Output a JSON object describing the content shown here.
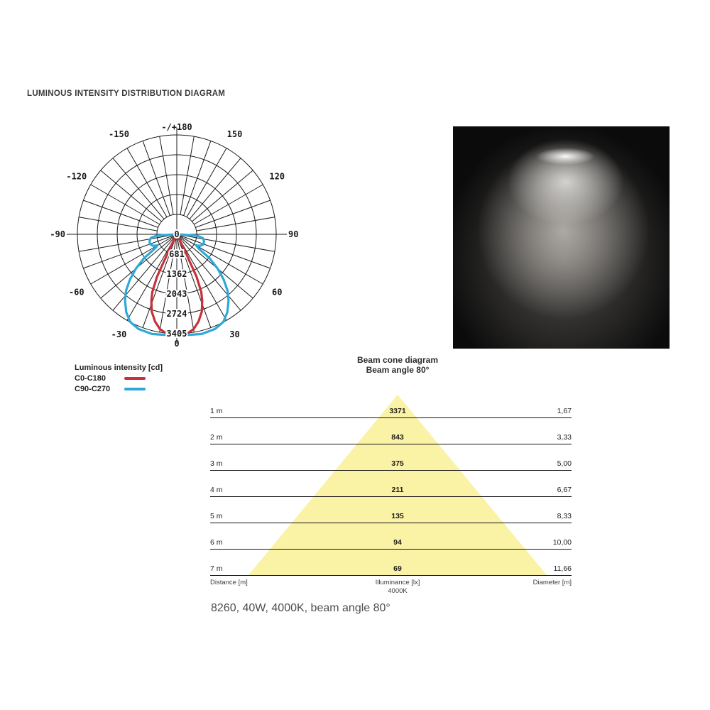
{
  "title": "LUMINOUS INTENSITY DISTRIBUTION DIAGRAM",
  "legend": {
    "title": "Luminous intensity [cd]",
    "entries": [
      {
        "label": "C0-C180",
        "color": "#c8303a"
      },
      {
        "label": "C90-C270",
        "color": "#2ea9d8"
      }
    ]
  },
  "photo": {
    "name": "light-beam-photo",
    "background": "#0b0b0b",
    "beam_color": "#e8e6e2"
  },
  "beam_cone": {
    "title": "Beam cone diagram",
    "subtitle": "Beam angle 80°",
    "cone_color": "#faf2a4",
    "rows": [
      {
        "distance": "1 m",
        "illuminance": "3371",
        "diameter": "1,67"
      },
      {
        "distance": "2 m",
        "illuminance": "843",
        "diameter": "3,33"
      },
      {
        "distance": "3 m",
        "illuminance": "375",
        "diameter": "5,00"
      },
      {
        "distance": "4 m",
        "illuminance": "211",
        "diameter": "6,67"
      },
      {
        "distance": "5 m",
        "illuminance": "135",
        "diameter": "8,33"
      },
      {
        "distance": "6 m",
        "illuminance": "94",
        "diameter": "10,00"
      },
      {
        "distance": "7 m",
        "illuminance": "69",
        "diameter": "11,66"
      }
    ],
    "footer": {
      "distance": "Distance [m]",
      "illuminance": "Illuminance [lx]",
      "cct": "4000K",
      "diameter": "Diameter [m]"
    }
  },
  "caption": "8260, 40W, 4000K, beam angle 80°",
  "chart_data": [
    {
      "type": "polar",
      "title": "Luminous intensity distribution",
      "units": "cd",
      "radial_ticks": [
        0,
        681,
        1362,
        2043,
        2724,
        3405
      ],
      "radial_max": 3405,
      "angle_grid_step_deg": 10,
      "angle_labels": [
        {
          "angle": 180,
          "text": "-/+180"
        },
        {
          "angle": -150,
          "text": "-150"
        },
        {
          "angle": 150,
          "text": "150"
        },
        {
          "angle": -120,
          "text": "-120"
        },
        {
          "angle": 120,
          "text": "120"
        },
        {
          "angle": -90,
          "text": "-90"
        },
        {
          "angle": 90,
          "text": "90"
        },
        {
          "angle": -60,
          "text": "-60"
        },
        {
          "angle": 60,
          "text": "60"
        },
        {
          "angle": -30,
          "text": "-30"
        },
        {
          "angle": 30,
          "text": "30"
        },
        {
          "angle": 0,
          "text": "0"
        }
      ],
      "series": [
        {
          "name": "C0-C180",
          "color": "#c8303a",
          "points_deg_cd": [
            [
              -30,
              0
            ],
            [
              -27,
              80
            ],
            [
              -26,
              650
            ],
            [
              -25,
              1600
            ],
            [
              -23,
              2150
            ],
            [
              -21,
              2430
            ],
            [
              -18,
              2780
            ],
            [
              -14,
              3080
            ],
            [
              -10,
              3300
            ],
            [
              -6,
              3420
            ],
            [
              0,
              3480
            ],
            [
              6,
              3420
            ],
            [
              10,
              3300
            ],
            [
              14,
              3080
            ],
            [
              18,
              2780
            ],
            [
              21,
              2430
            ],
            [
              23,
              2150
            ],
            [
              25,
              1600
            ],
            [
              26,
              650
            ],
            [
              27,
              80
            ],
            [
              30,
              0
            ]
          ]
        },
        {
          "name": "C90-C270",
          "color": "#2ea9d8",
          "points_deg_cd": [
            [
              -90,
              40
            ],
            [
              -86,
              700
            ],
            [
              -82,
              900
            ],
            [
              -76,
              960
            ],
            [
              -70,
              980
            ],
            [
              -64,
              900
            ],
            [
              -60,
              760
            ],
            [
              -57,
              900
            ],
            [
              -54,
              1380
            ],
            [
              -50,
              1830
            ],
            [
              -46,
              2230
            ],
            [
              -42,
              2600
            ],
            [
              -38,
              2880
            ],
            [
              -33,
              3180
            ],
            [
              -28,
              3400
            ],
            [
              -22,
              3500
            ],
            [
              -14,
              3520
            ],
            [
              -7,
              3470
            ],
            [
              0,
              3440
            ],
            [
              7,
              3470
            ],
            [
              14,
              3520
            ],
            [
              22,
              3500
            ],
            [
              28,
              3400
            ],
            [
              33,
              3180
            ],
            [
              38,
              2880
            ],
            [
              42,
              2600
            ],
            [
              46,
              2230
            ],
            [
              50,
              1830
            ],
            [
              54,
              1380
            ],
            [
              57,
              900
            ],
            [
              60,
              760
            ],
            [
              64,
              900
            ],
            [
              70,
              980
            ],
            [
              76,
              960
            ],
            [
              82,
              900
            ],
            [
              86,
              700
            ],
            [
              90,
              40
            ]
          ]
        }
      ]
    },
    {
      "type": "table",
      "title": "Beam cone diagram",
      "subtitle": "Beam angle 80°",
      "beam_angle_deg": 80,
      "columns": [
        "Distance [m]",
        "Illuminance [lx] 4000K",
        "Diameter [m]"
      ],
      "distances_m": [
        1,
        2,
        3,
        4,
        5,
        6,
        7
      ],
      "illuminance_lx": [
        3371,
        843,
        375,
        211,
        135,
        94,
        69
      ],
      "diameter_m": [
        1.67,
        3.33,
        5.0,
        6.67,
        8.33,
        10.0,
        11.66
      ]
    }
  ]
}
